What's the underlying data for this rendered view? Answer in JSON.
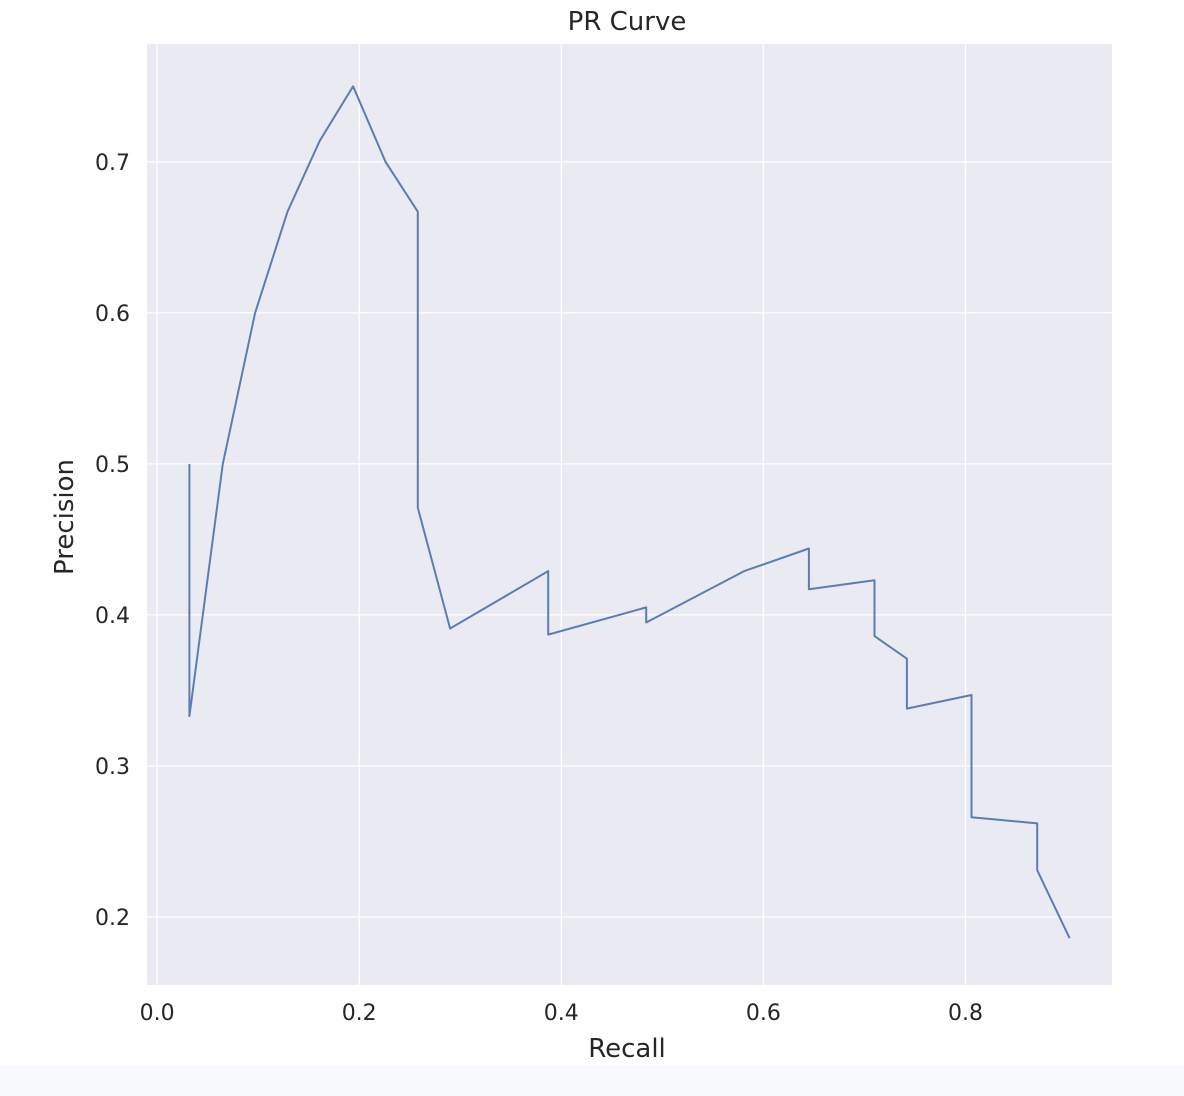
{
  "chart_data": {
    "type": "line",
    "title": "PR Curve",
    "xlabel": "Recall",
    "ylabel": "Precision",
    "xlim": [
      -0.01,
      0.945
    ],
    "ylim": [
      0.155,
      0.778
    ],
    "grid": true,
    "legend": "none",
    "colors": {
      "background": "#eaeaf2",
      "grid": "#ffffff",
      "line": "#5b7db3",
      "text": "#262626"
    },
    "x_ticks": [
      {
        "value": 0.0,
        "label": "0.0"
      },
      {
        "value": 0.2,
        "label": "0.2"
      },
      {
        "value": 0.4,
        "label": "0.4"
      },
      {
        "value": 0.6,
        "label": "0.6"
      },
      {
        "value": 0.8,
        "label": "0.8"
      }
    ],
    "y_ticks": [
      {
        "value": 0.2,
        "label": "0.2"
      },
      {
        "value": 0.3,
        "label": "0.3"
      },
      {
        "value": 0.4,
        "label": "0.4"
      },
      {
        "value": 0.5,
        "label": "0.5"
      },
      {
        "value": 0.6,
        "label": "0.6"
      },
      {
        "value": 0.7,
        "label": "0.7"
      }
    ],
    "series": [
      {
        "x": [
          0.032,
          0.032,
          0.065,
          0.097,
          0.129,
          0.161,
          0.194,
          0.226,
          0.258,
          0.258,
          0.29,
          0.387,
          0.387,
          0.484,
          0.484,
          0.581,
          0.645,
          0.645,
          0.71,
          0.71,
          0.742,
          0.742,
          0.806,
          0.806,
          0.871,
          0.871,
          0.903
        ],
        "y": [
          0.5,
          0.333,
          0.5,
          0.6,
          0.667,
          0.714,
          0.75,
          0.7,
          0.667,
          0.471,
          0.391,
          0.429,
          0.387,
          0.405,
          0.395,
          0.429,
          0.444,
          0.417,
          0.423,
          0.386,
          0.371,
          0.338,
          0.347,
          0.266,
          0.262,
          0.231,
          0.186
        ]
      }
    ]
  }
}
